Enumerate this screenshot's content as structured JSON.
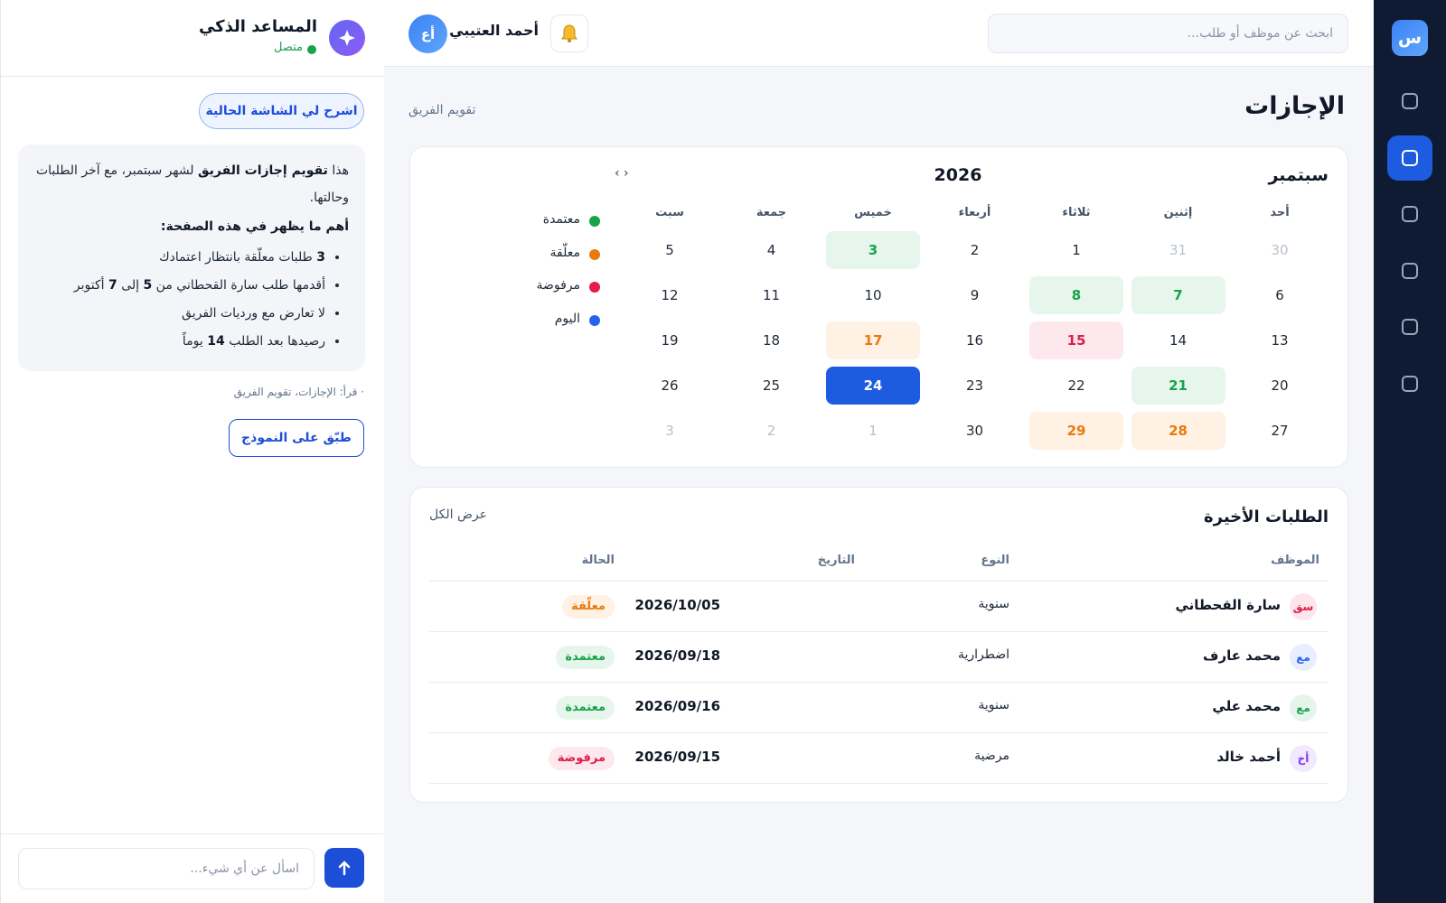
{
  "sidebar": {
    "logo": "س",
    "items": 6,
    "active": 1
  },
  "topbar": {
    "search_placeholder": "ابحث عن موظف أو طلب...",
    "user_name": "أحمد العتيبي",
    "user_initials": "أع"
  },
  "page": {
    "title": "الإجازات",
    "breadcrumb": "تقويم الفريق"
  },
  "calendar": {
    "month": "سبتمبر",
    "year": "2026",
    "nav": "‹ ›",
    "weekdays": [
      "أحد",
      "إثنين",
      "ثلاثاء",
      "أربعاء",
      "خميس",
      "جمعة",
      "سبت"
    ],
    "weeks": [
      [
        {
          "day": "30",
          "state": "muted"
        },
        {
          "day": "31",
          "state": "muted"
        },
        {
          "day": "1"
        },
        {
          "day": "2"
        },
        {
          "day": "3",
          "state": "approved"
        },
        {
          "day": "4"
        },
        {
          "day": "5"
        }
      ],
      [
        {
          "day": "6"
        },
        {
          "day": "7",
          "state": "approved"
        },
        {
          "day": "8",
          "state": "approved"
        },
        {
          "day": "9"
        },
        {
          "day": "10"
        },
        {
          "day": "11"
        },
        {
          "day": "12"
        }
      ],
      [
        {
          "day": "13"
        },
        {
          "day": "14"
        },
        {
          "day": "15",
          "state": "rejected"
        },
        {
          "day": "16"
        },
        {
          "day": "17",
          "state": "pending"
        },
        {
          "day": "18"
        },
        {
          "day": "19"
        }
      ],
      [
        {
          "day": "20"
        },
        {
          "day": "21",
          "state": "approved"
        },
        {
          "day": "22"
        },
        {
          "day": "23"
        },
        {
          "day": "24",
          "state": "today"
        },
        {
          "day": "25"
        },
        {
          "day": "26"
        }
      ],
      [
        {
          "day": "27"
        },
        {
          "day": "28",
          "state": "pending"
        },
        {
          "day": "29",
          "state": "pending"
        },
        {
          "day": "30"
        },
        {
          "day": "1",
          "state": "muted"
        },
        {
          "day": "2",
          "state": "muted"
        },
        {
          "day": "3",
          "state": "muted"
        }
      ]
    ],
    "legend": [
      {
        "label": "معتمدة",
        "color": "#16a34a"
      },
      {
        "label": "معلّقة",
        "color": "#ea7a0c"
      },
      {
        "label": "مرفوضة",
        "color": "#e11d48"
      },
      {
        "label": "اليوم",
        "color": "#2563eb"
      }
    ]
  },
  "requests": {
    "title": "الطلبات الأخيرة",
    "view_all": "عرض الكل",
    "headers": [
      "الموظف",
      "النوع",
      "التاريخ",
      "الحالة"
    ],
    "rows": [
      {
        "initials": "سق",
        "avatar_color": "#e11d48",
        "name": "سارة القحطاني",
        "type": "سنوية",
        "date": "2026/10/05",
        "status": "معلّقة",
        "state": "pending"
      },
      {
        "initials": "مع",
        "avatar_color": "#2563eb",
        "name": "محمد عارف",
        "type": "اضطرارية",
        "date": "2026/09/18",
        "status": "معتمدة",
        "state": "approved"
      },
      {
        "initials": "مع",
        "avatar_color": "#16a34a",
        "name": "محمد علي",
        "type": "سنوية",
        "date": "2026/09/16",
        "status": "معتمدة",
        "state": "approved"
      },
      {
        "initials": "أخ",
        "avatar_color": "#7c3aed",
        "name": "أحمد خالد",
        "type": "مرضية",
        "date": "2026/09/15",
        "status": "مرفوضة",
        "state": "rejected"
      }
    ]
  },
  "assistant": {
    "title": "المساعد الذكي",
    "status": "متصل",
    "explain_button": "اشرح لي الشاشة الحالية",
    "message": {
      "intro": [
        {
          "text": "هذا "
        },
        {
          "text": "تقويم إجازات الفريق",
          "bold": true
        },
        {
          "text": " لشهر سبتمبر، مع آخر الطلبات وحالتها."
        }
      ],
      "heading": "أهم ما يظهر في هذه الصفحة:",
      "bullets": [
        [
          {
            "text": "3",
            "bold": true
          },
          {
            "text": " طلبات معلّقة بانتظار اعتمادك"
          }
        ],
        [
          {
            "text": "أقدمها طلب سارة القحطاني من "
          },
          {
            "text": "5",
            "bold": true
          },
          {
            "text": " إلى "
          },
          {
            "text": "7",
            "bold": true
          },
          {
            "text": " أكتوبر"
          }
        ],
        [
          {
            "text": "لا تعارض مع ورديات الفريق"
          }
        ],
        [
          {
            "text": "رصيدها بعد الطلب "
          },
          {
            "text": "14",
            "bold": true
          },
          {
            "text": " يوماً"
          }
        ]
      ]
    },
    "source": "· قرأ: الإجازات، تقويم الفريق",
    "apply_button": "طبّق على النموذج",
    "input_placeholder": "اسأل عن أي شيء..."
  }
}
